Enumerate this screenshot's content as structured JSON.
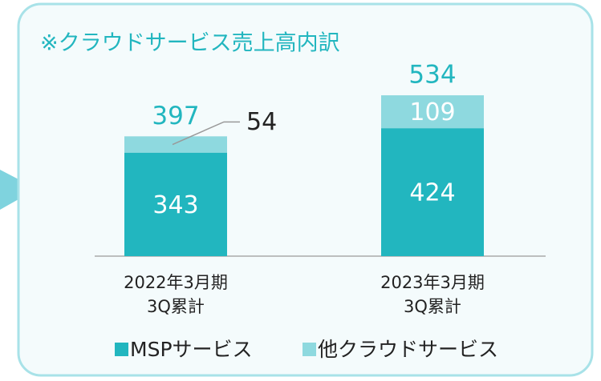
{
  "chart_data": {
    "type": "stacked_bar",
    "title": "※クラウドサービス売上高内訳",
    "categories": [
      [
        "2022年3月期",
        "3Q累計"
      ],
      [
        "2023年3月期",
        "3Q累計"
      ]
    ],
    "series": [
      {
        "name": "MSPサービス",
        "color": "#22b6bf",
        "values": [
          343,
          424
        ]
      },
      {
        "name": "他クラウドサービス",
        "color": "#8ed9df",
        "values": [
          54,
          109
        ]
      }
    ],
    "totals": [
      397,
      534
    ],
    "totals_color": "#22b6bf"
  }
}
